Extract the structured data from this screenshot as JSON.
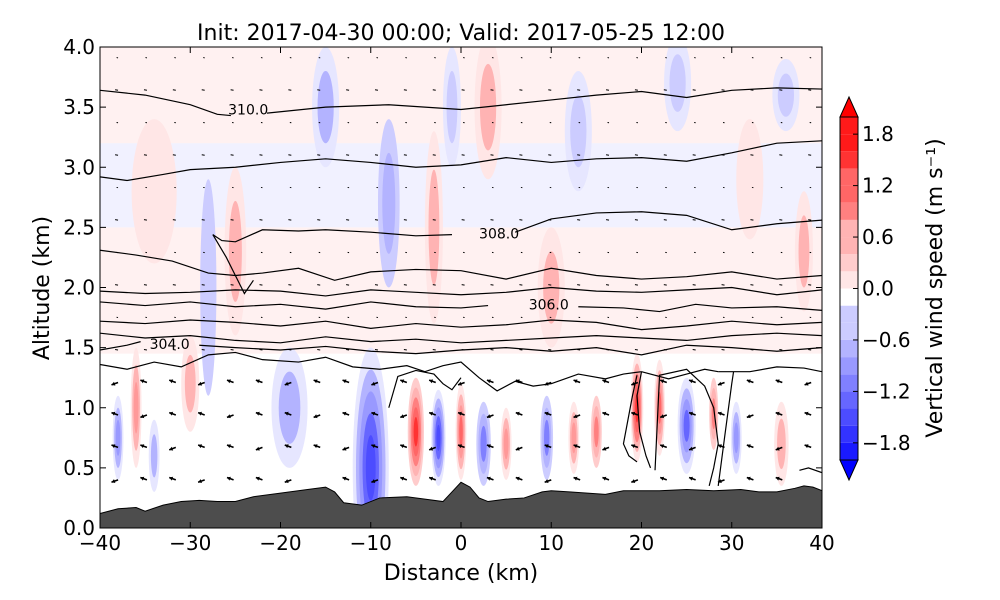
{
  "chart_data": {
    "type": "heatmap",
    "title": "Init: 2017-04-30 00:00; Valid: 2017-05-25 12:00",
    "xlabel": "Distance (km)",
    "ylabel": "Altitude (km)",
    "xlim": [
      -40,
      40
    ],
    "ylim": [
      0.0,
      4.0
    ],
    "x_ticks": [
      -40,
      -30,
      -20,
      -10,
      0,
      10,
      20,
      30,
      40
    ],
    "x_tick_labels": [
      "−40",
      "−30",
      "−20",
      "−10",
      "0",
      "10",
      "20",
      "30",
      "40"
    ],
    "y_ticks": [
      0.0,
      0.5,
      1.0,
      1.5,
      2.0,
      2.5,
      3.0,
      3.5,
      4.0
    ],
    "y_tick_labels": [
      "0.0",
      "0.5",
      "1.0",
      "1.5",
      "2.0",
      "2.5",
      "3.0",
      "3.5",
      "4.0"
    ],
    "grid": false,
    "colorbar": {
      "label": "Vertical wind speed (m s⁻¹)",
      "range": [
        -2.0,
        2.0
      ],
      "extend": "both",
      "levels": [
        -1.8,
        -1.6,
        -1.4,
        -1.2,
        -1.0,
        -0.8,
        -0.6,
        -0.4,
        -0.2,
        0.0,
        0.2,
        0.4,
        0.6,
        0.8,
        1.0,
        1.2,
        1.4,
        1.6,
        1.8
      ],
      "ticks": [
        -1.8,
        -1.2,
        -0.6,
        0.0,
        0.6,
        1.2,
        1.8
      ],
      "tick_labels": [
        "−1.8",
        "−1.2",
        "−0.6",
        "0.0",
        "0.6",
        "1.2",
        "1.8"
      ],
      "colormap": "bwr",
      "colors": {
        "negative": "#0000ff",
        "zero": "#ffffff",
        "positive": "#ff0000"
      }
    },
    "terrain": {
      "color": "#4d4d4d",
      "x": [
        -40,
        -38,
        -36,
        -35,
        -33,
        -31,
        -29,
        -27,
        -25,
        -23,
        -20,
        -17,
        -15,
        -14,
        -13,
        -11,
        -9,
        -6,
        -4,
        -2,
        -1,
        0,
        1,
        2,
        3,
        5,
        7,
        9,
        10,
        12,
        14,
        16,
        18,
        20,
        22,
        25,
        28,
        31,
        33,
        35,
        37,
        38,
        39,
        40
      ],
      "y": [
        0.12,
        0.16,
        0.17,
        0.14,
        0.19,
        0.22,
        0.23,
        0.22,
        0.22,
        0.26,
        0.29,
        0.32,
        0.34,
        0.3,
        0.21,
        0.19,
        0.25,
        0.26,
        0.24,
        0.22,
        0.3,
        0.38,
        0.34,
        0.25,
        0.22,
        0.24,
        0.25,
        0.3,
        0.31,
        0.3,
        0.29,
        0.28,
        0.31,
        0.31,
        0.31,
        0.32,
        0.31,
        0.32,
        0.3,
        0.3,
        0.33,
        0.35,
        0.34,
        0.31
      ]
    },
    "contour_labels": [
      {
        "text": "310.0",
        "x": -25.8,
        "y": 3.48
      },
      {
        "text": "308.0",
        "x": 2.0,
        "y": 2.45
      },
      {
        "text": "306.0",
        "x": 7.5,
        "y": 1.86
      },
      {
        "text": "304.0",
        "x": -34.5,
        "y": 1.53
      }
    ],
    "contours": [
      {
        "x": [
          -40,
          -35,
          -30,
          -27,
          -25.5
        ],
        "y": [
          3.64,
          3.6,
          3.52,
          3.44,
          3.43
        ]
      },
      {
        "x": [
          -21.5,
          -15,
          -8,
          0,
          5,
          10,
          15,
          20,
          25,
          30,
          35,
          40
        ],
        "y": [
          3.45,
          3.5,
          3.52,
          3.48,
          3.52,
          3.56,
          3.6,
          3.63,
          3.58,
          3.64,
          3.66,
          3.65
        ]
      },
      {
        "x": [
          -40,
          -37,
          -33,
          -30,
          -25,
          -20,
          -15,
          -10,
          -5,
          0,
          5,
          10,
          15,
          20,
          25,
          30,
          35,
          40
        ],
        "y": [
          2.92,
          2.89,
          2.94,
          2.98,
          3.0,
          3.04,
          3.07,
          3.04,
          3.0,
          3.02,
          3.08,
          3.04,
          3.07,
          3.08,
          3.05,
          3.12,
          3.2,
          3.22
        ]
      },
      {
        "x": [
          -27.5,
          -26.5,
          -25,
          -22,
          -18,
          -15,
          -10,
          -5,
          -1
        ],
        "y": [
          2.44,
          2.39,
          2.38,
          2.48,
          2.47,
          2.48,
          2.46,
          2.43,
          2.44
        ]
      },
      {
        "x": [
          6,
          10,
          15,
          20,
          25,
          30,
          35,
          40
        ],
        "y": [
          2.46,
          2.57,
          2.62,
          2.63,
          2.6,
          2.48,
          2.53,
          2.56
        ]
      },
      {
        "x": [
          -27.5,
          -26,
          -25,
          -24,
          -23
        ],
        "y": [
          2.44,
          2.25,
          2.1,
          1.95,
          2.06
        ]
      },
      {
        "x": [
          -40,
          -36,
          -32,
          -28,
          -25,
          -22,
          -18,
          -14,
          -10,
          -5,
          0,
          5,
          10,
          15,
          20,
          25,
          30,
          35,
          40
        ],
        "y": [
          2.31,
          2.27,
          2.22,
          2.12,
          2.1,
          2.12,
          2.16,
          2.06,
          2.13,
          2.15,
          2.14,
          2.07,
          2.16,
          2.1,
          2.07,
          2.09,
          2.13,
          2.07,
          2.1
        ]
      },
      {
        "x": [
          -40,
          -35,
          -30,
          -25,
          -20,
          -15,
          -10,
          -5,
          0,
          5,
          10,
          15,
          20,
          25,
          30,
          35,
          40
        ],
        "y": [
          1.97,
          1.95,
          1.96,
          1.98,
          1.97,
          1.93,
          1.98,
          1.96,
          1.94,
          1.96,
          2.0,
          1.97,
          1.96,
          1.98,
          2.0,
          1.94,
          1.98
        ]
      },
      {
        "x": [
          -40,
          -35,
          -30,
          -25,
          -20,
          -15,
          -10,
          -5,
          0,
          3
        ],
        "y": [
          1.88,
          1.85,
          1.88,
          1.84,
          1.86,
          1.82,
          1.88,
          1.84,
          1.83,
          1.85
        ]
      },
      {
        "x": [
          13,
          18,
          22,
          26,
          30,
          35,
          40
        ],
        "y": [
          1.84,
          1.83,
          1.8,
          1.86,
          1.83,
          1.84,
          1.81
        ]
      },
      {
        "x": [
          -40,
          -35,
          -30,
          -25,
          -20,
          -15,
          -10,
          -5,
          0,
          5,
          10,
          15,
          20,
          25,
          30,
          35,
          40
        ],
        "y": [
          1.72,
          1.7,
          1.73,
          1.71,
          1.68,
          1.72,
          1.66,
          1.7,
          1.67,
          1.69,
          1.73,
          1.71,
          1.65,
          1.68,
          1.72,
          1.69,
          1.71
        ]
      },
      {
        "x": [
          -40,
          -35,
          -30,
          -25,
          -20,
          -15,
          -10,
          -5,
          0,
          5,
          10,
          15,
          20,
          25,
          30,
          35,
          40
        ],
        "y": [
          1.62,
          1.58,
          1.6,
          1.56,
          1.54,
          1.59,
          1.55,
          1.57,
          1.54,
          1.56,
          1.58,
          1.6,
          1.58,
          1.56,
          1.6,
          1.62,
          1.6
        ]
      },
      {
        "x": [
          -40,
          -37,
          -35.5
        ],
        "y": [
          1.48,
          1.52,
          1.55
        ]
      },
      {
        "x": [
          -29,
          -25,
          -20,
          -15,
          -10,
          -5,
          0,
          5,
          10,
          15,
          20,
          25,
          30,
          35,
          40
        ],
        "y": [
          1.52,
          1.5,
          1.48,
          1.51,
          1.47,
          1.45,
          1.48,
          1.5,
          1.47,
          1.5,
          1.44,
          1.52,
          1.5,
          1.47,
          1.5
        ]
      },
      {
        "x": [
          -40,
          -37,
          -34,
          -31,
          -28,
          -25,
          -22,
          -18,
          -15,
          -12,
          -9,
          -6,
          -4,
          -2,
          0,
          2,
          4,
          6,
          8,
          10,
          13,
          16,
          18,
          20
        ],
        "y": [
          1.36,
          1.32,
          1.38,
          1.34,
          1.44,
          1.46,
          1.4,
          1.38,
          1.42,
          1.34,
          1.32,
          1.35,
          1.3,
          1.35,
          1.38,
          1.25,
          1.14,
          1.22,
          1.18,
          1.2,
          1.28,
          1.24,
          1.28,
          1.3
        ]
      },
      {
        "x": [
          -8,
          -7,
          -5,
          -3,
          -2,
          -1,
          0
        ],
        "y": [
          1.0,
          1.26,
          1.31,
          1.28,
          1.2,
          1.15,
          1.25
        ]
      },
      {
        "x": [
          20,
          19.5,
          19.8,
          20.5,
          21
        ],
        "y": [
          1.3,
          1.1,
          0.8,
          0.6,
          0.5
        ]
      },
      {
        "x": [
          19.5,
          19,
          18.5,
          18,
          18.6,
          19.5
        ],
        "y": [
          1.27,
          1.1,
          0.9,
          0.7,
          0.6,
          0.55
        ]
      },
      {
        "x": [
          21.5,
          22,
          25,
          27,
          28,
          28.5,
          28,
          27.5
        ],
        "y": [
          0.48,
          1.27,
          1.32,
          1.18,
          1.0,
          0.7,
          0.5,
          0.35
        ]
      },
      {
        "x": [
          28.5,
          29.2,
          30,
          30.2
        ],
        "y": [
          0.35,
          0.75,
          1.2,
          1.3
        ]
      },
      {
        "x": [
          20,
          23,
          25,
          27,
          28.5
        ],
        "y": [
          1.3,
          1.24,
          1.28,
          1.32,
          1.3
        ]
      },
      {
        "x": [
          28.5,
          32,
          35,
          38,
          40
        ],
        "y": [
          1.3,
          1.3,
          1.34,
          1.33,
          1.3
        ]
      },
      {
        "x": [
          37.5,
          38.5,
          40
        ],
        "y": [
          0.48,
          0.5,
          0.46
        ]
      }
    ],
    "wind_field": [
      {
        "x": -10,
        "y": 0.5,
        "w": -1.4,
        "halfwidth_km": 2.0,
        "halfheight_km": 1.0
      },
      {
        "x": -5,
        "y": 0.8,
        "w": 1.6,
        "halfwidth_km": 0.9,
        "halfheight_km": 0.45
      },
      {
        "x": -2.5,
        "y": 0.75,
        "w": -1.5,
        "halfwidth_km": 0.8,
        "halfheight_km": 0.4
      },
      {
        "x": 0,
        "y": 0.8,
        "w": 1.2,
        "halfwidth_km": 0.6,
        "halfheight_km": 0.4
      },
      {
        "x": 2.5,
        "y": 0.7,
        "w": -1.0,
        "halfwidth_km": 0.8,
        "halfheight_km": 0.35
      },
      {
        "x": 5,
        "y": 0.7,
        "w": 0.8,
        "halfwidth_km": 0.6,
        "halfheight_km": 0.3
      },
      {
        "x": 9.5,
        "y": 0.75,
        "w": -1.0,
        "halfwidth_km": 0.7,
        "halfheight_km": 0.35
      },
      {
        "x": 12.5,
        "y": 0.75,
        "w": 0.8,
        "halfwidth_km": 0.6,
        "halfheight_km": 0.3
      },
      {
        "x": 15,
        "y": 0.8,
        "w": 1.0,
        "halfwidth_km": 0.6,
        "halfheight_km": 0.3
      },
      {
        "x": 19.5,
        "y": 1.0,
        "w": 1.5,
        "halfwidth_km": 0.7,
        "halfheight_km": 0.45
      },
      {
        "x": 22,
        "y": 1.0,
        "w": 1.2,
        "halfwidth_km": 0.6,
        "halfheight_km": 0.4
      },
      {
        "x": 25,
        "y": 0.85,
        "w": -1.2,
        "halfwidth_km": 1.0,
        "halfheight_km": 0.4
      },
      {
        "x": 28,
        "y": 0.95,
        "w": 1.0,
        "halfwidth_km": 0.5,
        "halfheight_km": 0.3
      },
      {
        "x": 30.5,
        "y": 0.75,
        "w": -0.9,
        "halfwidth_km": 0.6,
        "halfheight_km": 0.3
      },
      {
        "x": 35.5,
        "y": 0.7,
        "w": 0.5,
        "halfwidth_km": 0.8,
        "halfheight_km": 0.35
      },
      {
        "x": -38,
        "y": 0.75,
        "w": -0.9,
        "halfwidth_km": 0.6,
        "halfheight_km": 0.35
      },
      {
        "x": -36,
        "y": 1.0,
        "w": 0.8,
        "halfwidth_km": 0.6,
        "halfheight_km": 0.5
      },
      {
        "x": -34,
        "y": 0.6,
        "w": -0.6,
        "halfwidth_km": 0.6,
        "halfheight_km": 0.3
      },
      {
        "x": -28,
        "y": 2.0,
        "w": -0.4,
        "halfwidth_km": 0.9,
        "halfheight_km": 0.9
      },
      {
        "x": -25,
        "y": 2.3,
        "w": 0.5,
        "halfwidth_km": 1.2,
        "halfheight_km": 0.7
      },
      {
        "x": -19,
        "y": 1.0,
        "w": -0.6,
        "halfwidth_km": 2.0,
        "halfheight_km": 0.5
      },
      {
        "x": -15,
        "y": 3.5,
        "w": -0.6,
        "halfwidth_km": 1.5,
        "halfheight_km": 0.5
      },
      {
        "x": -8,
        "y": 2.7,
        "w": -0.7,
        "halfwidth_km": 1.2,
        "halfheight_km": 0.7
      },
      {
        "x": -3,
        "y": 2.5,
        "w": 0.6,
        "halfwidth_km": 1.0,
        "halfheight_km": 0.8
      },
      {
        "x": -1,
        "y": 3.5,
        "w": -0.5,
        "halfwidth_km": 1.0,
        "halfheight_km": 0.5
      },
      {
        "x": 3,
        "y": 3.5,
        "w": 0.5,
        "halfwidth_km": 1.5,
        "halfheight_km": 0.6
      },
      {
        "x": 10,
        "y": 2.0,
        "w": 0.5,
        "halfwidth_km": 1.5,
        "halfheight_km": 0.5
      },
      {
        "x": 13,
        "y": 3.3,
        "w": -0.5,
        "halfwidth_km": 1.5,
        "halfheight_km": 0.5
      },
      {
        "x": 24,
        "y": 3.7,
        "w": -0.5,
        "halfwidth_km": 1.5,
        "halfheight_km": 0.4
      },
      {
        "x": 36,
        "y": 3.6,
        "w": -0.5,
        "halfwidth_km": 1.5,
        "halfheight_km": 0.3
      },
      {
        "x": 38,
        "y": 2.3,
        "w": 0.5,
        "halfwidth_km": 1.0,
        "halfheight_km": 0.5
      },
      {
        "x": 32,
        "y": 2.9,
        "w": 0.3,
        "halfwidth_km": 1.5,
        "halfheight_km": 0.5
      },
      {
        "x": -34,
        "y": 2.8,
        "w": 0.3,
        "halfwidth_km": 2.5,
        "halfheight_km": 0.6
      },
      {
        "x": -30,
        "y": 1.2,
        "w": 0.5,
        "halfwidth_km": 1.0,
        "halfheight_km": 0.4
      }
    ],
    "wind_arrows": {
      "x_start": -38,
      "x_step": 3.2,
      "x_count": 25,
      "y_start": 0.4,
      "y_step": 0.27,
      "y_count": 14
    }
  }
}
